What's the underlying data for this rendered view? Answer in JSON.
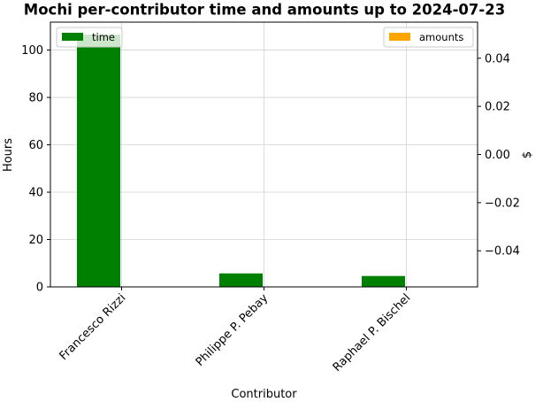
{
  "chart_data": {
    "type": "bar",
    "title": "Mochi per-contributor time and amounts up to 2024-07-23",
    "xlabel": "Contributor",
    "ylabel": "Hours",
    "y2label": "$",
    "categories": [
      "Francesco Rizzi",
      "Philippe P. Pebay",
      "Raphael P. Bischel"
    ],
    "series": [
      {
        "name": "time",
        "axis": "left",
        "color": "#008000",
        "values": [
          106.5,
          5.7,
          4.6
        ]
      },
      {
        "name": "amounts",
        "axis": "right",
        "color": "#ffa500",
        "values": [
          0,
          0,
          0
        ]
      }
    ],
    "ylim": [
      0,
      111.8
    ],
    "y2lim": [
      -0.055,
      0.055
    ],
    "yticks": [
      0,
      20,
      40,
      60,
      80,
      100
    ],
    "y2ticks": [
      -0.04,
      -0.02,
      0.0,
      0.02,
      0.04
    ],
    "y2tick_labels": [
      "−0.04",
      "−0.02",
      "0.00",
      "0.02",
      "0.04"
    ],
    "grid": true,
    "legend": [
      {
        "name": "time",
        "placement": "top-left"
      },
      {
        "name": "amounts",
        "placement": "top-right"
      }
    ]
  }
}
